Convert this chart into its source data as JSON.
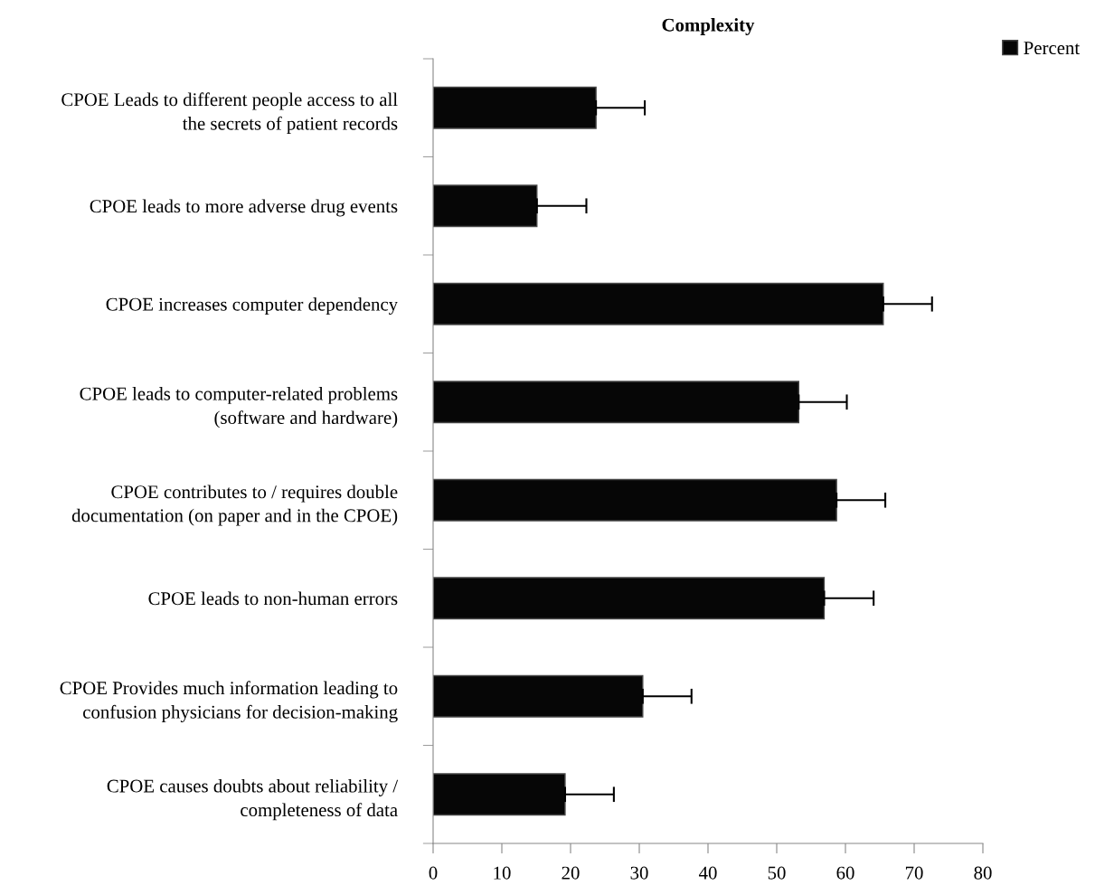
{
  "chart_data": {
    "type": "bar",
    "orientation": "horizontal",
    "title": "Complexity",
    "categories": [
      "CPOE Leads to different people access to all\nthe secrets of patient records",
      "CPOE leads to more adverse drug events",
      "CPOE increases computer dependency",
      "CPOE leads to computer-related problems\n(software and hardware)",
      "CPOE contributes to / requires double\ndocumentation (on paper and in the CPOE)",
      "CPOE leads to non-human errors",
      "CPOE Provides much information leading to\nconfusion physicians for decision-making",
      "CPOE causes doubts about reliability /\ncompleteness of data"
    ],
    "series": [
      {
        "name": "Percent",
        "color": "#060606",
        "values": [
          23.7,
          15.1,
          65.5,
          53.2,
          58.7,
          56.9,
          30.5,
          19.2
        ],
        "errors": [
          [
            23.7,
            30.8
          ],
          [
            15.1,
            22.3
          ],
          [
            65.5,
            72.6
          ],
          [
            53.2,
            60.2
          ],
          [
            58.7,
            65.8
          ],
          [
            56.9,
            64.1
          ],
          [
            30.5,
            37.6
          ],
          [
            19.2,
            26.3
          ]
        ]
      }
    ],
    "xlim": [
      0,
      80
    ],
    "xticks": [
      0,
      10,
      20,
      30,
      40,
      50,
      60,
      70,
      80
    ],
    "legend": "top right",
    "grid": false
  }
}
